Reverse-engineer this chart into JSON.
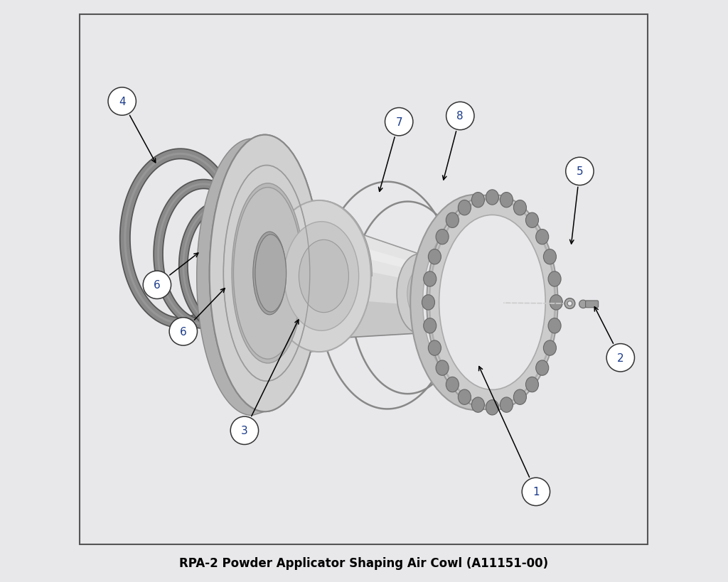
{
  "title": "RPA-2 Powder Applicator Shaping Air Cowl (A11151-00)",
  "title_fontsize": 12,
  "title_fontweight": "bold",
  "bg_color": "#e8e8eb",
  "border_color": "#555555",
  "callout_number_color": "#1a3a8a",
  "callout_bg": "#ffffff",
  "callout_edge": "#333333",
  "arrow_color": "#000000",
  "oring_color": "#808080",
  "wire_ring_color": "#777777",
  "metal_light": "#e0e0e0",
  "metal_mid": "#c8c8c8",
  "metal_dark": "#a0a0a0",
  "metal_edge": "#888888",
  "bolt_color": "#909090",
  "bolt_edge": "#555555",
  "callouts": {
    "1": [
      0.795,
      0.155,
      0.695,
      0.375
    ],
    "2": [
      0.94,
      0.385,
      0.893,
      0.477
    ],
    "3": [
      0.295,
      0.26,
      0.39,
      0.455
    ],
    "4": [
      0.085,
      0.825,
      0.145,
      0.715
    ],
    "5": [
      0.87,
      0.705,
      0.855,
      0.575
    ],
    "6a": [
      0.145,
      0.51,
      0.22,
      0.568
    ],
    "6b": [
      0.19,
      0.43,
      0.265,
      0.508
    ],
    "7": [
      0.56,
      0.79,
      0.525,
      0.665
    ],
    "8": [
      0.665,
      0.8,
      0.635,
      0.685
    ]
  }
}
